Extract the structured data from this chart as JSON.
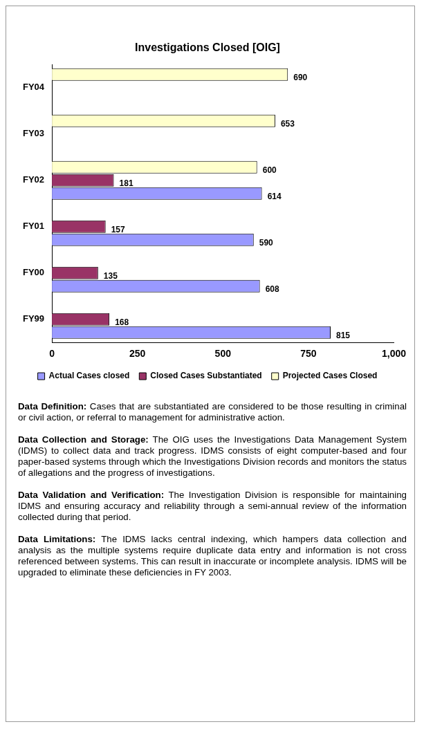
{
  "chart_data": {
    "type": "bar",
    "orientation": "horizontal",
    "title": "Investigations Closed [OIG]",
    "categories": [
      "FY04",
      "FY03",
      "FY02",
      "FY01",
      "FY00",
      "FY99"
    ],
    "series": [
      {
        "name": "Actual Cases closed",
        "color": "#9999ff",
        "values": [
          null,
          null,
          614,
          590,
          608,
          815
        ]
      },
      {
        "name": "Closed Cases Substantiated",
        "color": "#993366",
        "values": [
          null,
          null,
          181,
          157,
          135,
          168
        ]
      },
      {
        "name": "Projected Cases Closed",
        "color": "#ffffcc",
        "values": [
          690,
          653,
          600,
          null,
          null,
          null
        ]
      }
    ],
    "xlim": [
      0,
      1000
    ],
    "xticks": [
      0,
      250,
      500,
      750,
      {
        "value": 1000,
        "label": "1,000"
      }
    ],
    "grid": false,
    "legend": "bottom",
    "data_labels": true,
    "annotations": [
      "Data Definition: Cases that are substantiated are considered to be those resulting in criminal or civil action, or referral to management for administrative action.",
      "Data Collection and Storage: The OIG uses the Investigations Data Management System (IDMS) to collect data and track progress. IDMS consists of eight computer-based and four paper-based systems through which the Investigations Division records and monitors the status of allegations and the progress of investigations.",
      "Data Validation and Verification: The Investigation Division is responsible for maintaining IDMS and ensuring accuracy and reliability through a semi-annual review of the information collected during that period.",
      "Data Limitations: The IDMS lacks central indexing, which hampers data collection and analysis as the multiple systems require duplicate data entry and information is not cross referenced between systems. This can result in inaccurate or incomplete analysis. IDMS will be upgraded to eliminate these deficiencies in FY 2003."
    ]
  }
}
